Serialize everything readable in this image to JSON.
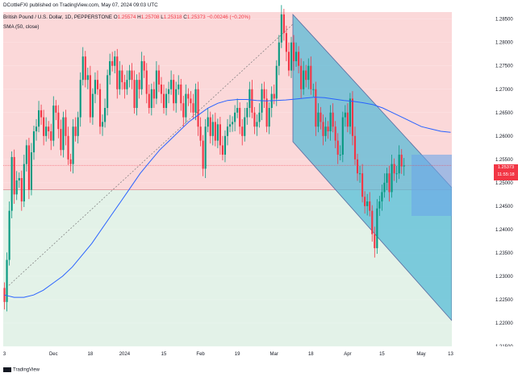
{
  "header": {
    "publisher": "DCottleFXI published on TradingView.com, May 07, 2024 09:03 UTC",
    "symbol": "British Pound / U.S. Dollar, 1D, PEPPERSTONE",
    "ohlc": [
      {
        "label": "O",
        "value": "1.25574"
      },
      {
        "label": "H",
        "value": "1.25708"
      },
      {
        "label": "L",
        "value": "1.25318"
      },
      {
        "label": "C",
        "value": "1.25373"
      }
    ],
    "change": "−0.00246 (−0.20%)",
    "sma_label": "SMA (50, close)"
  },
  "price_label": {
    "value": "1.25373",
    "countdown": "11:55:18"
  },
  "footer": {
    "brand": "TradingView"
  },
  "colors": {
    "up": "#089981",
    "down": "#f23645",
    "sma": "#2962ff",
    "upper_zone": "#fbd8d9",
    "lower_zone": "#e3f2e8",
    "channel": "#4fb9d6",
    "box": "#6aa6e8"
  },
  "chart_data": {
    "type": "candlestick",
    "title": "British Pound / U.S. Dollar, 1D, PEPPERSTONE",
    "ylim": [
      1.215,
      1.2865
    ],
    "y_ticks": [
      "1.28500",
      "1.28000",
      "1.27500",
      "1.27000",
      "1.26500",
      "1.26000",
      "1.25500",
      "1.25000",
      "1.24500",
      "1.24000",
      "1.23500",
      "1.23000",
      "1.22500",
      "1.22000",
      "1.21500"
    ],
    "x_ticks": [
      {
        "label": "3",
        "index": 0
      },
      {
        "label": "Dec",
        "index": 20
      },
      {
        "label": "18",
        "index": 35
      },
      {
        "label": "2024",
        "index": 49
      },
      {
        "label": "15",
        "index": 65
      },
      {
        "label": "Feb",
        "index": 80
      },
      {
        "label": "19",
        "index": 95
      },
      {
        "label": "Mar",
        "index": 110
      },
      {
        "label": "18",
        "index": 125
      },
      {
        "label": "Apr",
        "index": 140
      },
      {
        "label": "15",
        "index": 154
      },
      {
        "label": "May",
        "index": 170
      },
      {
        "label": "13",
        "index": 182
      }
    ],
    "horizontal_level": 1.2485,
    "current_level": 1.25373,
    "candles_close": [
      1.2245,
      1.2335,
      1.244,
      1.2555,
      1.2475,
      1.2505,
      1.251,
      1.246,
      1.254,
      1.258,
      1.2485,
      1.2565,
      1.261,
      1.262,
      1.2655,
      1.264,
      1.26,
      1.262,
      1.261,
      1.259,
      1.2665,
      1.265,
      1.2615,
      1.257,
      1.264,
      1.26,
      1.255,
      1.254,
      1.262,
      1.26,
      1.264,
      1.272,
      1.277,
      1.272,
      1.273,
      1.264,
      1.269,
      1.272,
      1.27,
      1.262,
      1.263,
      1.266,
      1.273,
      1.276,
      1.275,
      1.277,
      1.27,
      1.274,
      1.2715,
      1.27,
      1.272,
      1.274,
      1.272,
      1.266,
      1.272,
      1.27,
      1.276,
      1.274,
      1.269,
      1.266,
      1.27,
      1.268,
      1.274,
      1.271,
      1.269,
      1.266,
      1.269,
      1.27,
      1.272,
      1.267,
      1.27,
      1.271,
      1.267,
      1.264,
      1.269,
      1.268,
      1.267,
      1.265,
      1.27,
      1.262,
      1.259,
      1.253,
      1.262,
      1.264,
      1.26,
      1.263,
      1.259,
      1.2625,
      1.258,
      1.256,
      1.26,
      1.262,
      1.2625,
      1.263,
      1.265,
      1.266,
      1.262,
      1.26,
      1.264,
      1.266,
      1.27,
      1.265,
      1.262,
      1.263,
      1.265,
      1.27,
      1.268,
      1.262,
      1.266,
      1.269,
      1.268,
      1.275,
      1.28,
      1.286,
      1.282,
      1.278,
      1.274,
      1.28,
      1.276,
      1.278,
      1.275,
      1.27,
      1.274,
      1.272,
      1.275,
      1.27,
      1.27,
      1.262,
      1.265,
      1.263,
      1.26,
      1.262,
      1.261,
      1.265,
      1.262,
      1.259,
      1.256,
      1.256,
      1.264,
      1.265,
      1.262,
      1.268,
      1.26,
      1.255,
      1.252,
      1.252,
      1.247,
      1.245,
      1.246,
      1.244,
      1.239,
      1.236,
      1.2445,
      1.246,
      1.248,
      1.25,
      1.252,
      1.248,
      1.254,
      1.252,
      1.252,
      1.256,
      1.2535,
      1.2537
    ],
    "series": [
      {
        "name": "SMA (50, close)",
        "values": [
          1.226,
          1.2255,
          1.2255,
          1.226,
          1.227,
          1.2285,
          1.23,
          1.232,
          1.2345,
          1.237,
          1.24,
          1.243,
          1.246,
          1.249,
          1.252,
          1.2545,
          1.257,
          1.259,
          1.261,
          1.263,
          1.2645,
          1.266,
          1.267,
          1.2676,
          1.2678,
          1.2678,
          1.2676,
          1.2675,
          1.2676,
          1.2677,
          1.2679,
          1.2681,
          1.2683,
          1.2682,
          1.2679,
          1.2676,
          1.2674,
          1.2671,
          1.2667,
          1.266,
          1.265,
          1.264,
          1.263,
          1.262,
          1.2615,
          1.261,
          1.2608
        ]
      }
    ]
  }
}
